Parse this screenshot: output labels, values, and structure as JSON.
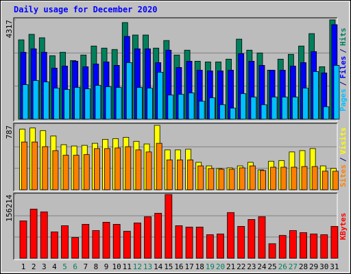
{
  "title": "Daily usage for December 2020",
  "days": [
    "1",
    "2",
    "3",
    "4",
    "5",
    "6",
    "7",
    "8",
    "9",
    "10",
    "11",
    "12",
    "13",
    "14",
    "15",
    "16",
    "17",
    "18",
    "19",
    "20",
    "21",
    "22",
    "23",
    "24",
    "25",
    "26",
    "27",
    "28",
    "29",
    "30",
    "31"
  ],
  "day_colors": [
    "#000000",
    "#000000",
    "#000000",
    "#000000",
    "#00805c",
    "#00805c",
    "#000000",
    "#000000",
    "#000000",
    "#000000",
    "#000000",
    "#00805c",
    "#00805c",
    "#000000",
    "#000000",
    "#000000",
    "#000000",
    "#000000",
    "#00805c",
    "#00805c",
    "#000000",
    "#000000",
    "#000000",
    "#000000",
    "#000000",
    "#00805c",
    "#00805c",
    "#000000",
    "#000000",
    "#000000",
    "#000000"
  ],
  "legend_separator": "/",
  "chart_data": [
    {
      "type": "bar",
      "ylim": [
        0,
        4317
      ],
      "yticks": [
        4317
      ],
      "series": [
        {
          "name": "Hits",
          "color": "#00805c",
          "values": [
            3450,
            3690,
            3540,
            2760,
            2910,
            2550,
            2790,
            3180,
            3090,
            3030,
            4200,
            3660,
            3660,
            3090,
            3420,
            2790,
            3000,
            2520,
            2490,
            2490,
            2610,
            3480,
            3000,
            2880,
            2130,
            2610,
            2820,
            3180,
            3720,
            2280,
            4317
          ]
        },
        {
          "name": "Files",
          "color": "#0000ff",
          "values": [
            2910,
            3060,
            2910,
            2220,
            2310,
            2520,
            2280,
            2400,
            2490,
            2340,
            3600,
            3060,
            3060,
            2460,
            3000,
            2250,
            2520,
            2130,
            2100,
            2100,
            2130,
            2850,
            2520,
            2340,
            2130,
            2130,
            2310,
            2460,
            2940,
            2010,
            4110
          ]
        },
        {
          "name": "Pages",
          "color": "#00c0ff",
          "values": [
            1500,
            1680,
            1620,
            1350,
            1290,
            1380,
            1320,
            1470,
            1410,
            1380,
            2460,
            1380,
            1350,
            2040,
            1050,
            1080,
            1140,
            780,
            930,
            630,
            480,
            1110,
            960,
            630,
            960,
            960,
            960,
            1350,
            2070,
            540,
            2340
          ]
        }
      ]
    },
    {
      "type": "bar",
      "ylim": [
        0,
        787
      ],
      "yticks": [
        787
      ],
      "series": [
        {
          "name": "Visits",
          "color": "#ffff00",
          "values": [
            740,
            755,
            722,
            657,
            551,
            535,
            543,
            568,
            616,
            625,
            641,
            592,
            560,
            787,
            487,
            487,
            495,
            335,
            292,
            260,
            268,
            292,
            335,
            243,
            349,
            357,
            462,
            478,
            503,
            292,
            260
          ]
        },
        {
          "name": "Sites",
          "color": "#ff8000",
          "values": [
            584,
            584,
            527,
            478,
            422,
            422,
            430,
            503,
            503,
            511,
            527,
            487,
            462,
            568,
            365,
            365,
            365,
            292,
            260,
            251,
            251,
            268,
            292,
            235,
            276,
            276,
            276,
            284,
            284,
            227,
            227
          ]
        }
      ]
    },
    {
      "type": "bar",
      "ylim": [
        0,
        156214
      ],
      "yticks": [
        156214
      ],
      "series": [
        {
          "name": "KBytes",
          "color": "#ff0000",
          "values": [
            91692,
            120558,
            113766,
            64524,
            79806,
            50940,
            83202,
            67920,
            88296,
            83202,
            66222,
            86598,
            101880,
            110370,
            156214,
            79806,
            76410,
            76410,
            57732,
            59430,
            112068,
            78108,
            95088,
            101880,
            35658,
            56034,
            67920,
            62826,
            59430,
            57732,
            78108
          ]
        }
      ]
    }
  ]
}
